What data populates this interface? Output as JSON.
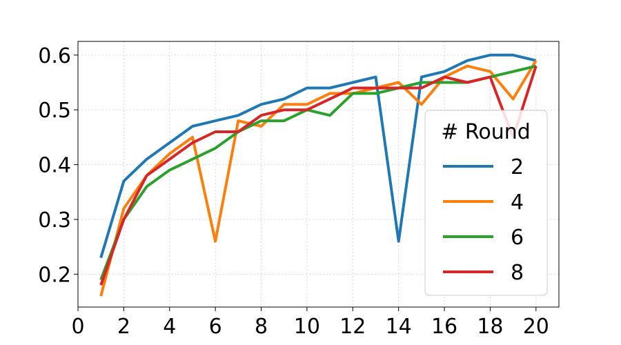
{
  "chart_data": {
    "type": "line",
    "title": "",
    "xlabel": "",
    "ylabel": "",
    "xlim": [
      0,
      21
    ],
    "ylim": [
      0.14,
      0.625
    ],
    "xticks": [
      0,
      2,
      4,
      6,
      8,
      10,
      12,
      14,
      16,
      18,
      20
    ],
    "yticks": [
      0.2,
      0.3,
      0.4,
      0.5,
      0.6
    ],
    "xtick_labels": [
      "0",
      "2",
      "4",
      "6",
      "8",
      "10",
      "12",
      "14",
      "16",
      "18",
      "20"
    ],
    "ytick_labels": [
      "0.2",
      "0.3",
      "0.4",
      "0.5",
      "0.6"
    ],
    "grid": true,
    "legend_title": "# Round",
    "legend_position": "lower-right",
    "x": [
      1,
      2,
      3,
      4,
      5,
      6,
      7,
      8,
      9,
      10,
      11,
      12,
      13,
      14,
      15,
      16,
      17,
      18,
      19,
      20
    ],
    "series": [
      {
        "name": "2",
        "color": "#1f77b4",
        "values": [
          0.23,
          0.37,
          0.41,
          0.44,
          0.47,
          0.48,
          0.49,
          0.51,
          0.52,
          0.54,
          0.54,
          0.55,
          0.56,
          0.26,
          0.56,
          0.57,
          0.59,
          0.6,
          0.6,
          0.59
        ]
      },
      {
        "name": "4",
        "color": "#ff7f0e",
        "values": [
          0.16,
          0.32,
          0.38,
          0.42,
          0.45,
          0.26,
          0.48,
          0.47,
          0.51,
          0.51,
          0.53,
          0.53,
          0.54,
          0.55,
          0.51,
          0.56,
          0.58,
          0.57,
          0.52,
          0.59
        ]
      },
      {
        "name": "6",
        "color": "#2ca02c",
        "values": [
          0.19,
          0.3,
          0.36,
          0.39,
          0.41,
          0.43,
          0.46,
          0.48,
          0.48,
          0.5,
          0.49,
          0.53,
          0.53,
          0.54,
          0.55,
          0.55,
          0.55,
          0.56,
          0.57,
          0.58
        ]
      },
      {
        "name": "8",
        "color": "#d62728",
        "values": [
          0.18,
          0.3,
          0.38,
          0.41,
          0.44,
          0.46,
          0.46,
          0.49,
          0.5,
          0.5,
          0.52,
          0.54,
          0.54,
          0.54,
          0.54,
          0.56,
          0.55,
          0.56,
          0.45,
          0.58
        ]
      }
    ]
  }
}
